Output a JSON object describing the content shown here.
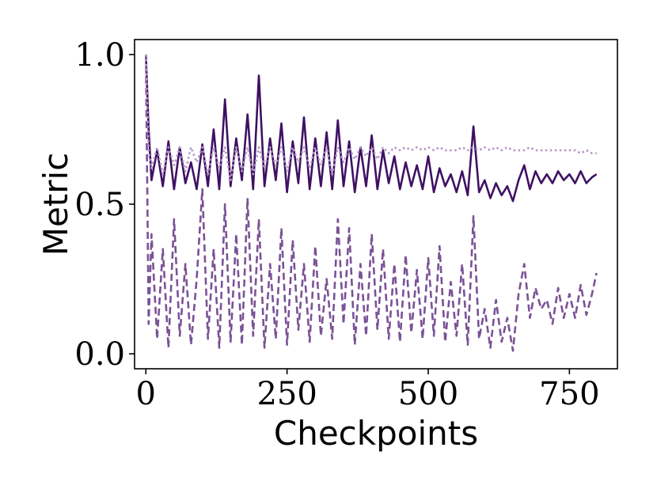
{
  "chart_data": {
    "type": "line",
    "xlabel": "Checkpoints",
    "ylabel": "Metric",
    "xlim": [
      -20,
      835
    ],
    "ylim": [
      -0.05,
      1.05
    ],
    "xticks": [
      0,
      250,
      500,
      750
    ],
    "xtick_labels": [
      "0",
      "250",
      "500",
      "750"
    ],
    "yticks": [
      0.0,
      0.5,
      1.0
    ],
    "ytick_labels": [
      "0.0",
      "0.5",
      "1.0"
    ],
    "grid": false,
    "legend": "none",
    "series": [
      {
        "style": "solid",
        "color": "#3f1163",
        "x": [
          0,
          5,
          10,
          20,
          30,
          40,
          50,
          60,
          70,
          80,
          90,
          100,
          110,
          120,
          130,
          140,
          150,
          160,
          170,
          180,
          190,
          200,
          210,
          220,
          230,
          240,
          250,
          260,
          270,
          280,
          290,
          300,
          310,
          320,
          330,
          340,
          350,
          360,
          370,
          380,
          390,
          400,
          410,
          420,
          430,
          440,
          450,
          460,
          470,
          480,
          490,
          500,
          510,
          520,
          530,
          540,
          550,
          560,
          570,
          580,
          590,
          600,
          610,
          620,
          630,
          640,
          650,
          660,
          670,
          680,
          690,
          700,
          710,
          720,
          730,
          740,
          750,
          760,
          770,
          780,
          790,
          798
        ],
        "y": [
          1.0,
          0.75,
          0.58,
          0.68,
          0.56,
          0.71,
          0.55,
          0.69,
          0.57,
          0.64,
          0.55,
          0.7,
          0.56,
          0.75,
          0.55,
          0.85,
          0.56,
          0.72,
          0.58,
          0.8,
          0.55,
          0.93,
          0.56,
          0.72,
          0.58,
          0.77,
          0.54,
          0.71,
          0.57,
          0.79,
          0.55,
          0.72,
          0.56,
          0.74,
          0.55,
          0.78,
          0.56,
          0.71,
          0.54,
          0.69,
          0.56,
          0.73,
          0.55,
          0.68,
          0.57,
          0.66,
          0.55,
          0.64,
          0.56,
          0.63,
          0.55,
          0.66,
          0.54,
          0.62,
          0.56,
          0.6,
          0.54,
          0.61,
          0.53,
          0.76,
          0.54,
          0.58,
          0.52,
          0.57,
          0.53,
          0.56,
          0.51,
          0.58,
          0.63,
          0.55,
          0.61,
          0.57,
          0.6,
          0.57,
          0.61,
          0.58,
          0.6,
          0.57,
          0.61,
          0.57,
          0.59,
          0.6
        ]
      },
      {
        "style": "dashed",
        "color": "#7a5296",
        "x": [
          0,
          5,
          10,
          20,
          30,
          40,
          50,
          60,
          70,
          80,
          90,
          100,
          110,
          120,
          130,
          140,
          150,
          160,
          170,
          180,
          190,
          200,
          210,
          220,
          230,
          240,
          250,
          260,
          270,
          280,
          290,
          300,
          310,
          320,
          330,
          340,
          350,
          360,
          370,
          380,
          390,
          400,
          410,
          420,
          430,
          440,
          450,
          460,
          470,
          480,
          490,
          500,
          510,
          520,
          530,
          540,
          550,
          560,
          570,
          580,
          590,
          600,
          610,
          620,
          630,
          640,
          650,
          660,
          670,
          680,
          690,
          700,
          710,
          720,
          730,
          740,
          750,
          760,
          770,
          780,
          790,
          798
        ],
        "y": [
          1.0,
          0.1,
          0.4,
          0.05,
          0.35,
          0.02,
          0.45,
          0.06,
          0.3,
          0.03,
          0.25,
          0.55,
          0.05,
          0.35,
          0.02,
          0.5,
          0.04,
          0.4,
          0.03,
          0.52,
          0.06,
          0.45,
          0.02,
          0.3,
          0.05,
          0.42,
          0.03,
          0.38,
          0.08,
          0.3,
          0.04,
          0.36,
          0.06,
          0.25,
          0.05,
          0.45,
          0.1,
          0.42,
          0.03,
          0.3,
          0.06,
          0.4,
          0.08,
          0.35,
          0.05,
          0.3,
          0.04,
          0.33,
          0.07,
          0.28,
          0.05,
          0.32,
          0.06,
          0.36,
          0.04,
          0.24,
          0.06,
          0.3,
          0.03,
          0.46,
          0.05,
          0.15,
          0.02,
          0.18,
          0.04,
          0.12,
          0.01,
          0.2,
          0.3,
          0.12,
          0.22,
          0.15,
          0.18,
          0.1,
          0.22,
          0.12,
          0.2,
          0.12,
          0.23,
          0.13,
          0.2,
          0.27
        ]
      },
      {
        "style": "dotted",
        "color": "#b696c8",
        "x": [
          0,
          5,
          10,
          20,
          30,
          40,
          50,
          60,
          70,
          80,
          90,
          100,
          110,
          120,
          130,
          140,
          150,
          160,
          170,
          180,
          190,
          200,
          210,
          220,
          230,
          240,
          250,
          260,
          270,
          280,
          290,
          300,
          310,
          320,
          330,
          340,
          350,
          360,
          370,
          380,
          390,
          400,
          410,
          420,
          430,
          440,
          450,
          460,
          470,
          480,
          490,
          500,
          510,
          520,
          530,
          540,
          550,
          560,
          570,
          580,
          590,
          600,
          610,
          620,
          630,
          640,
          650,
          660,
          670,
          680,
          690,
          700,
          710,
          720,
          730,
          740,
          750,
          760,
          770,
          780,
          790,
          798
        ],
        "y": [
          1.0,
          0.68,
          0.62,
          0.69,
          0.6,
          0.69,
          0.63,
          0.69,
          0.61,
          0.69,
          0.64,
          0.69,
          0.6,
          0.69,
          0.62,
          0.69,
          0.58,
          0.69,
          0.61,
          0.69,
          0.6,
          0.69,
          0.62,
          0.69,
          0.63,
          0.69,
          0.61,
          0.69,
          0.64,
          0.69,
          0.62,
          0.69,
          0.63,
          0.69,
          0.6,
          0.69,
          0.64,
          0.69,
          0.65,
          0.69,
          0.66,
          0.69,
          0.65,
          0.69,
          0.67,
          0.69,
          0.68,
          0.69,
          0.68,
          0.69,
          0.68,
          0.69,
          0.68,
          0.69,
          0.68,
          0.68,
          0.68,
          0.69,
          0.68,
          0.69,
          0.68,
          0.69,
          0.68,
          0.69,
          0.68,
          0.69,
          0.68,
          0.68,
          0.68,
          0.69,
          0.68,
          0.68,
          0.68,
          0.68,
          0.68,
          0.68,
          0.68,
          0.68,
          0.67,
          0.68,
          0.67,
          0.67
        ]
      }
    ]
  }
}
